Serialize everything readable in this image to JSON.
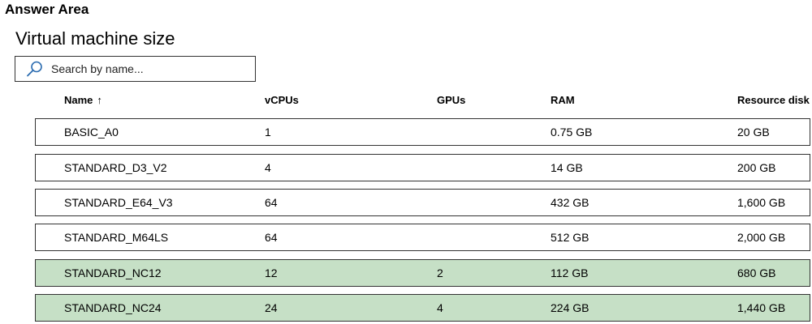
{
  "header": {
    "answer_area": "Answer Area",
    "title": "Virtual machine size"
  },
  "search": {
    "placeholder": "Search by name..."
  },
  "table": {
    "columns": {
      "name": "Name",
      "sort_glyph": "↑",
      "vcpus": "vCPUs",
      "gpus": "GPUs",
      "ram": "RAM",
      "disk": "Resource disk"
    },
    "rows": [
      {
        "name": "BASIC_A0",
        "vcpus": "1",
        "gpus": "",
        "ram": "0.75 GB",
        "disk": "20 GB",
        "selected": false
      },
      {
        "name": "STANDARD_D3_V2",
        "vcpus": "4",
        "gpus": "",
        "ram": "14 GB",
        "disk": "200 GB",
        "selected": false
      },
      {
        "name": "STANDARD_E64_V3",
        "vcpus": "64",
        "gpus": "",
        "ram": "432 GB",
        "disk": "1,600 GB",
        "selected": false
      },
      {
        "name": "STANDARD_M64LS",
        "vcpus": "64",
        "gpus": "",
        "ram": "512 GB",
        "disk": "2,000 GB",
        "selected": false
      },
      {
        "name": "STANDARD_NC12",
        "vcpus": "12",
        "gpus": "2",
        "ram": "112 GB",
        "disk": "680 GB",
        "selected": true
      },
      {
        "name": "STANDARD_NC24",
        "vcpus": "24",
        "gpus": "4",
        "ram": "224 GB",
        "disk": "1,440 GB",
        "selected": true
      }
    ]
  },
  "colors": {
    "selected_row_bg": "#c6e0c6",
    "border": "#333333",
    "icon": "#2b6cb0"
  },
  "icons": {
    "search": "search-icon",
    "sort": "sort-ascending-icon"
  }
}
